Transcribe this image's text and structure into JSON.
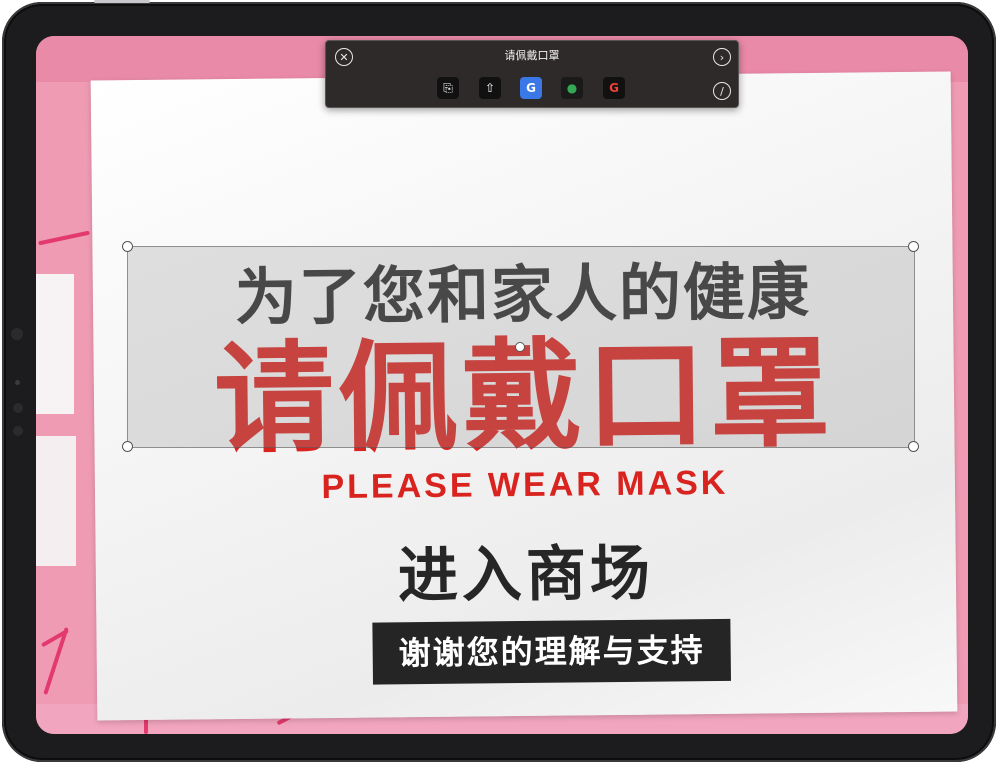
{
  "lookup_bar": {
    "title": "请佩戴口罩",
    "close_icon": "close-icon",
    "next_icon": "chevron-right-icon",
    "more_icon": "slash-circle-icon",
    "actions": [
      {
        "name": "copy-button",
        "icon": "copy-icon",
        "glyph": "⎘"
      },
      {
        "name": "share-button",
        "icon": "share-icon",
        "glyph": "⇧"
      },
      {
        "name": "translate-button",
        "icon": "google-translate-icon",
        "glyph": "G"
      },
      {
        "name": "maps-button",
        "icon": "google-maps-icon",
        "glyph": "●"
      },
      {
        "name": "google-search-button",
        "icon": "google-icon",
        "glyph": "G"
      }
    ]
  },
  "poster": {
    "line1": "为了您和家人的健康",
    "line2": "请佩戴口罩",
    "line3": "PLEASE WEAR MASK",
    "line4": "进入商场",
    "line5": "谢谢您的理解与支持"
  },
  "colors": {
    "accent_red": "#d8231f",
    "bezel": "#1c1c1e",
    "wall_pink": "#ef9bb4"
  }
}
